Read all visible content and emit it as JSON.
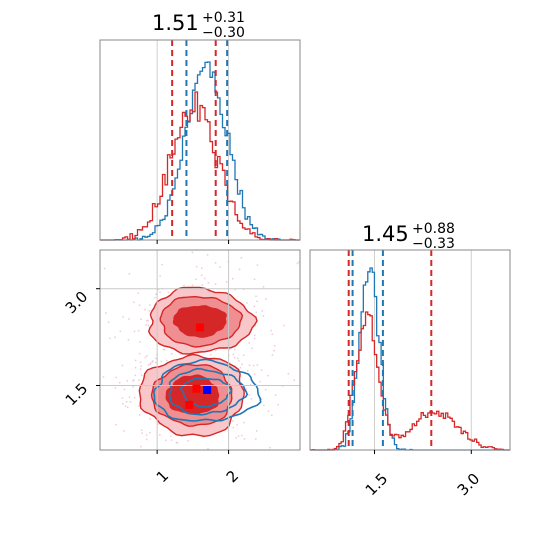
{
  "chart_data": [
    {
      "type": "histogram",
      "panel": "top-left",
      "title": {
        "median": "1.51",
        "plus": "+0.31",
        "minus": "−0.30"
      },
      "xlim": [
        0.2,
        3.0
      ],
      "grid": true,
      "series": [
        {
          "name": "",
          "color": "#1f77b4",
          "quantiles": [
            1.41,
            1.98
          ]
        },
        {
          "name": "",
          "color": "#d62728",
          "quantiles": [
            1.21,
            1.82
          ]
        }
      ]
    },
    {
      "type": "contour",
      "panel": "bottom-left",
      "xlim": [
        0.2,
        3.0
      ],
      "ylim": [
        0.5,
        3.6
      ],
      "xticks": [
        1,
        2
      ],
      "xtick_labels": [
        "1",
        "2"
      ],
      "yticks": [
        1.5,
        3.0
      ],
      "ytick_labels": [
        "1.5",
        "3.0"
      ],
      "grid": true,
      "markers": [
        {
          "color": "#ff0000",
          "x": 1.6,
          "y": 2.4
        },
        {
          "color": "#ff0000",
          "x": 1.55,
          "y": 1.45
        },
        {
          "color": "#ff0000",
          "x": 1.45,
          "y": 1.2
        },
        {
          "color": "#0000ff",
          "x": 1.7,
          "y": 1.43
        }
      ]
    },
    {
      "type": "histogram",
      "panel": "bottom-right",
      "title": {
        "median": "1.45",
        "plus": "+0.88",
        "minus": "−0.33"
      },
      "xlim": [
        0.5,
        3.6
      ],
      "xticks": [
        1.5,
        3.0
      ],
      "xtick_labels": [
        "1.5",
        "3.0"
      ],
      "grid": true,
      "series": [
        {
          "name": "",
          "color": "#1f77b4",
          "quantiles": [
            1.16,
            1.63
          ]
        },
        {
          "name": "",
          "color": "#d62728",
          "quantiles": [
            1.1,
            2.38
          ]
        }
      ]
    }
  ],
  "colors": {
    "blue": "#1f77b4",
    "red": "#d62728",
    "red_marker": "#ff0000",
    "blue_marker": "#0000ff"
  }
}
